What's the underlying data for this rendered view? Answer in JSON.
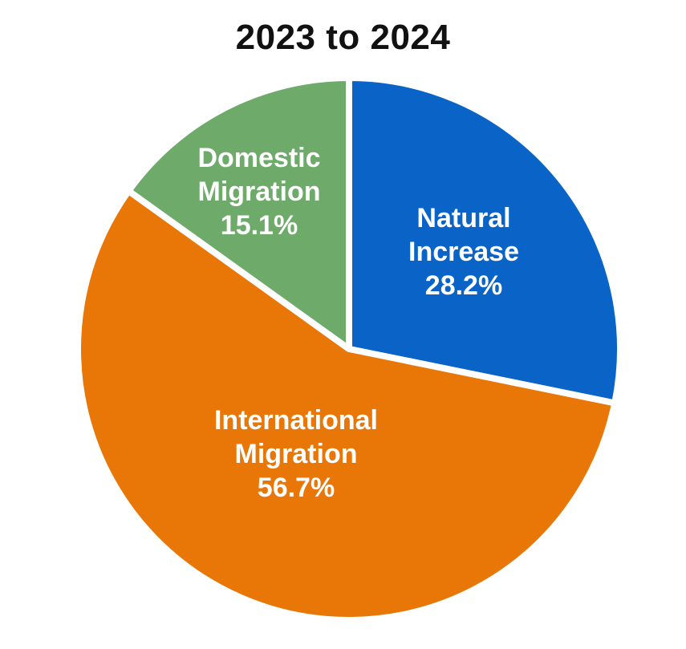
{
  "chart_data": {
    "type": "pie",
    "title": "2023 to 2024",
    "slices": [
      {
        "name": "Natural Increase",
        "label_lines": [
          "Natural",
          "Increase"
        ],
        "value": 28.2,
        "value_label": "28.2%",
        "color": "#0a64c8"
      },
      {
        "name": "International Migration",
        "label_lines": [
          "International",
          "Migration"
        ],
        "value": 56.7,
        "value_label": "56.7%",
        "color": "#e87707"
      },
      {
        "name": "Domestic Migration",
        "label_lines": [
          "Domestic",
          "Migration"
        ],
        "value": 15.1,
        "value_label": "15.1%",
        "color": "#6eab6a"
      }
    ],
    "start_angle_deg": 0,
    "direction": "clockwise",
    "separator_color": "#ffffff"
  }
}
